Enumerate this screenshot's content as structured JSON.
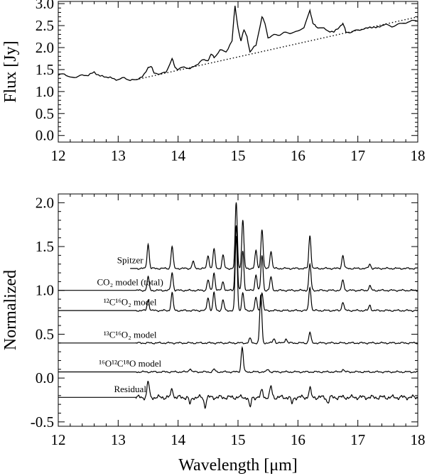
{
  "chart_data": [
    {
      "type": "line",
      "title": "",
      "xlabel": "",
      "ylabel": "Flux [Jy]",
      "xlim": [
        12,
        18
      ],
      "ylim": [
        -0.15,
        3.05
      ],
      "x_ticks": [
        12,
        13,
        14,
        15,
        16,
        17,
        18
      ],
      "x_tick_labels": [
        "12",
        "13",
        "14",
        "15",
        "16",
        "17",
        "18"
      ],
      "y_ticks": [
        0.0,
        0.5,
        1.0,
        1.5,
        2.0,
        2.5,
        3.0
      ],
      "y_tick_labels": [
        "0.0",
        "0.5",
        "1.0",
        "1.5",
        "2.0",
        "2.5",
        "3.0"
      ],
      "grid": false,
      "series": [
        {
          "style": "solid",
          "x": [
            12.0,
            12.1,
            12.2,
            12.3,
            12.4,
            12.5,
            12.6,
            12.7,
            12.8,
            12.9,
            13.0,
            13.1,
            13.2,
            13.3,
            13.4,
            13.5,
            13.55,
            13.6,
            13.7,
            13.8,
            13.9,
            13.95,
            14.0,
            14.1,
            14.2,
            14.3,
            14.4,
            14.5,
            14.55,
            14.6,
            14.7,
            14.8,
            14.9,
            14.95,
            15.0,
            15.05,
            15.1,
            15.15,
            15.2,
            15.3,
            15.4,
            15.45,
            15.5,
            15.6,
            15.7,
            15.8,
            15.9,
            16.0,
            16.1,
            16.2,
            16.25,
            16.3,
            16.4,
            16.5,
            16.6,
            16.7,
            16.75,
            16.8,
            16.9,
            17.0,
            17.1,
            17.2,
            17.3,
            17.4,
            17.5,
            17.6,
            17.7,
            17.8,
            17.9,
            18.0
          ],
          "y": [
            1.37,
            1.4,
            1.33,
            1.32,
            1.38,
            1.36,
            1.45,
            1.35,
            1.33,
            1.3,
            1.27,
            1.32,
            1.25,
            1.27,
            1.33,
            1.55,
            1.57,
            1.42,
            1.4,
            1.44,
            1.75,
            1.55,
            1.5,
            1.56,
            1.52,
            1.6,
            1.72,
            1.7,
            1.85,
            1.77,
            1.95,
            1.9,
            2.15,
            2.95,
            2.45,
            2.15,
            2.4,
            2.25,
            1.9,
            2.05,
            2.7,
            2.55,
            2.22,
            2.3,
            2.28,
            2.35,
            2.33,
            2.38,
            2.45,
            2.85,
            2.55,
            2.48,
            2.45,
            2.38,
            2.35,
            2.48,
            2.55,
            2.35,
            2.35,
            2.4,
            2.42,
            2.47,
            2.45,
            2.5,
            2.52,
            2.48,
            2.55,
            2.55,
            2.62,
            2.6
          ]
        },
        {
          "style": "dotted",
          "x": [
            13.3,
            18.0
          ],
          "y": [
            1.27,
            2.7
          ]
        }
      ]
    },
    {
      "type": "line",
      "title": "",
      "xlabel": "Wavelength [μm]",
      "ylabel": "Normalized",
      "xlim": [
        12,
        18
      ],
      "ylim": [
        -0.55,
        2.1
      ],
      "x_ticks": [
        12,
        13,
        14,
        15,
        16,
        17,
        18
      ],
      "x_tick_labels": [
        "12",
        "13",
        "14",
        "15",
        "16",
        "17",
        "18"
      ],
      "y_ticks": [
        -0.5,
        0.0,
        0.5,
        1.0,
        1.5,
        2.0
      ],
      "y_tick_labels": [
        "-0.5",
        "0.0",
        "0.5",
        "1.0",
        "1.5",
        "2.0"
      ],
      "grid": false,
      "series": [
        {
          "name": "Spitzer",
          "baseline": 1.25,
          "x_start": 13.2,
          "peaks": [
            [
              13.5,
              0.28
            ],
            [
              13.9,
              0.25
            ],
            [
              14.25,
              0.08
            ],
            [
              14.5,
              0.15
            ],
            [
              14.6,
              0.22
            ],
            [
              14.75,
              0.15
            ],
            [
              14.97,
              0.75
            ],
            [
              15.08,
              0.55
            ],
            [
              15.3,
              0.2
            ],
            [
              15.4,
              0.45
            ],
            [
              15.55,
              0.2
            ],
            [
              16.2,
              0.38
            ],
            [
              16.75,
              0.15
            ],
            [
              17.2,
              0.05
            ]
          ],
          "label_x": 13.2,
          "label_y": 1.31
        },
        {
          "name": "CO₂ model (total)",
          "baseline": 1.0,
          "x_start": 12.0,
          "peaks": [
            [
              13.5,
              0.15
            ],
            [
              13.9,
              0.2
            ],
            [
              14.5,
              0.12
            ],
            [
              14.6,
              0.2
            ],
            [
              14.75,
              0.1
            ],
            [
              14.97,
              0.75
            ],
            [
              15.08,
              0.45
            ],
            [
              15.3,
              0.18
            ],
            [
              15.4,
              0.4
            ],
            [
              15.55,
              0.15
            ],
            [
              16.2,
              0.3
            ],
            [
              16.75,
              0.12
            ],
            [
              17.2,
              0.05
            ]
          ],
          "label_x": 13.2,
          "label_y": 1.06
        },
        {
          "name": "¹²C¹⁶O₂ model",
          "baseline": 0.77,
          "x_start": 12.0,
          "peaks": [
            [
              13.5,
              0.12
            ],
            [
              13.9,
              0.2
            ],
            [
              14.5,
              0.15
            ],
            [
              14.6,
              0.2
            ],
            [
              14.75,
              0.12
            ],
            [
              14.97,
              0.85
            ],
            [
              15.08,
              0.2
            ],
            [
              15.3,
              0.15
            ],
            [
              15.4,
              0.2
            ],
            [
              16.2,
              0.27
            ],
            [
              16.75,
              0.1
            ],
            [
              17.2,
              0.06
            ]
          ],
          "label_x": 13.2,
          "label_y": 0.83
        },
        {
          "name": "¹³C¹⁶O₂ model",
          "baseline": 0.4,
          "x_start": 12.0,
          "peaks": [
            [
              15.38,
              0.55
            ],
            [
              15.2,
              0.05
            ],
            [
              15.6,
              0.05
            ],
            [
              15.8,
              0.05
            ],
            [
              16.2,
              0.12
            ]
          ],
          "label_x": 13.2,
          "label_y": 0.46
        },
        {
          "name": "¹⁶O¹²C¹⁸O model",
          "baseline": 0.07,
          "x_start": 12.0,
          "peaks": [
            [
              15.07,
              0.28
            ],
            [
              14.2,
              0.04
            ],
            [
              14.6,
              0.03
            ],
            [
              15.5,
              0.03
            ],
            [
              16.75,
              0.03
            ]
          ],
          "label_x": 13.2,
          "label_y": 0.13
        },
        {
          "name": "Residual",
          "baseline": -0.22,
          "x_start": 12.0,
          "peaks": [
            [
              13.5,
              0.18
            ],
            [
              13.9,
              0.1
            ],
            [
              15.4,
              0.08
            ],
            [
              15.55,
              0.12
            ],
            [
              16.2,
              0.1
            ],
            [
              14.2,
              -0.08
            ],
            [
              14.45,
              -0.1
            ],
            [
              15.2,
              -0.12
            ],
            [
              15.9,
              -0.07
            ],
            [
              16.5,
              -0.06
            ]
          ],
          "label_x": 13.2,
          "label_y": -0.16
        }
      ]
    }
  ]
}
